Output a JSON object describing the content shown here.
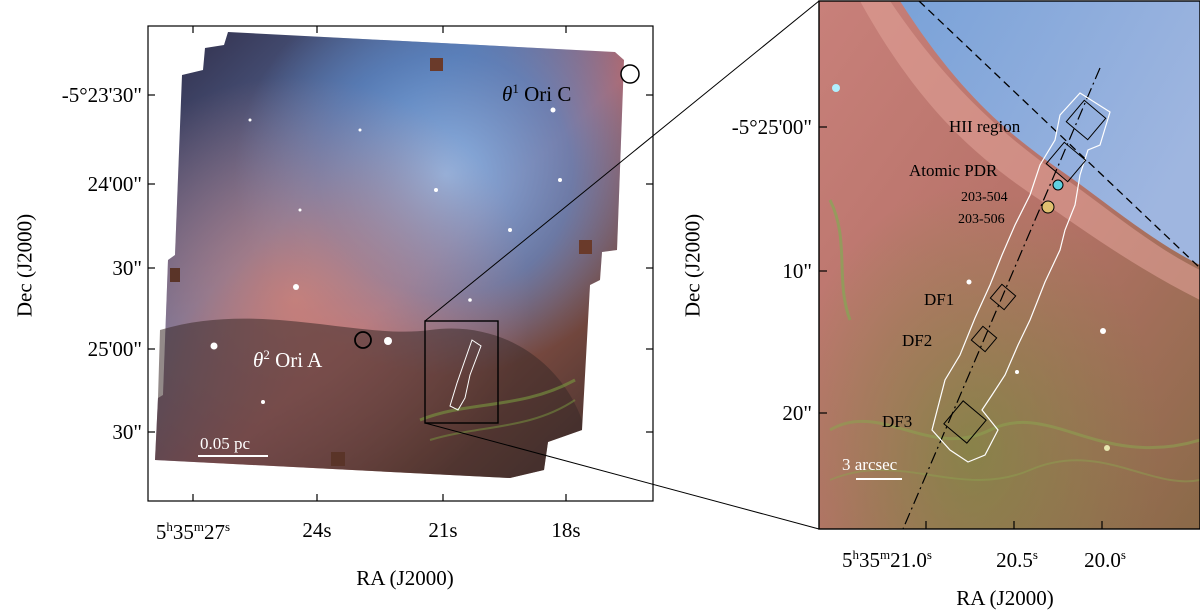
{
  "left_panel": {
    "x_ticks": [
      "5h35m27s",
      "24s",
      "21s",
      "18s"
    ],
    "x_tick_parts": {
      "h": "5",
      "m": "35",
      "s": "27",
      "sup_h": "h",
      "sup_m": "m",
      "sup_s": "s"
    },
    "y_ticks": [
      "-5°23'30\"",
      "24'00\"",
      "30\"",
      "25'00\"",
      "30\""
    ],
    "x_axis_title": "RA (J2000)",
    "y_axis_title": "Dec (J2000)",
    "labels": {
      "theta1": "θ",
      "theta1_sup": "1",
      "theta1_rest": "Ori C",
      "theta2": "θ",
      "theta2_sup": "2",
      "theta2_rest": "Ori A",
      "scale_bar": "0.05 pc"
    }
  },
  "right_panel": {
    "x_ticks": [
      "5h35m21.0s",
      "20.5s",
      "20.0s"
    ],
    "x_tick_second_labels": [
      "20.5",
      "20.0"
    ],
    "y_ticks": [
      "-5°25'00\"",
      "10\"",
      "20\""
    ],
    "x_axis_title": "RA (J2000)",
    "y_axis_title": "Dec (J2000)",
    "labels": {
      "hii": "HII region",
      "atomic": "Atomic PDR",
      "p504": "203-504",
      "p506": "203-506",
      "df1": "DF1",
      "df2": "DF2",
      "df3": "DF3",
      "scale_bar": "3 arcsec"
    }
  },
  "colors": {
    "ionized": "#6a9ad0",
    "pdr": "#c8786e",
    "molecular": "#5a6a30",
    "dark": "#3a2a2c"
  }
}
